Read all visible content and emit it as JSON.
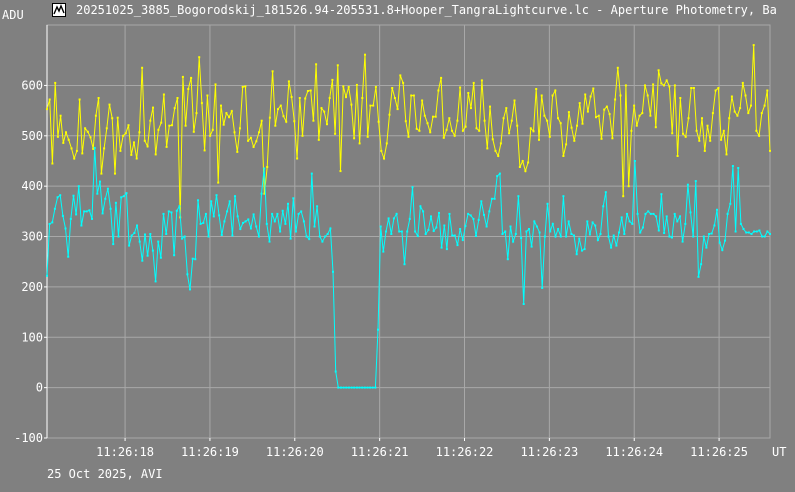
{
  "title": "20251025_3885_Bogorodskij_181526.94-205531.8+Hooper_TangraLightcurve.lc - Aperture Photometry, Ba",
  "footer": "25 Oct 2025, AVI",
  "colors": {
    "background": "#808080",
    "grid": "#a8a8a8",
    "target": "#ffff00",
    "comparison": "#00ffff"
  },
  "chart_data": {
    "type": "line",
    "ylabel": "ADU",
    "xunit": "UT",
    "ylim": [
      -100,
      720
    ],
    "yticks": [
      -100,
      0,
      100,
      200,
      300,
      400,
      500,
      600
    ],
    "xlim": [
      "11:26:17.08",
      "11:26:25.60"
    ],
    "xticks": [
      "11:26:18",
      "11:26:19",
      "11:26:20",
      "11:26:21",
      "11:26:22",
      "11:26:23",
      "11:26:24",
      "11:26:25"
    ],
    "grid": true,
    "frame_interval_s": 0.04,
    "series": [
      {
        "color": "#ffff00",
        "values": [
          553,
          572,
          445,
          605,
          498,
          540,
          486,
          507,
          492,
          475,
          455,
          470,
          572,
          465,
          515,
          508,
          497,
          474,
          540,
          575,
          425,
          475,
          515,
          562,
          535,
          425,
          536,
          470,
          500,
          505,
          521,
          462,
          487,
          455,
          507,
          635,
          490,
          479,
          530,
          556,
          463,
          512,
          526,
          582,
          478,
          520,
          521,
          555,
          575,
          338,
          617,
          520,
          593,
          615,
          508,
          545,
          656,
          565,
          471,
          580,
          500,
          512,
          602,
          407,
          560,
          522,
          545,
          537,
          549,
          507,
          468,
          515,
          597,
          598,
          490,
          496,
          478,
          489,
          507,
          530,
          385,
          438,
          536,
          628,
          520,
          553,
          560,
          539,
          528,
          608,
          577,
          529,
          455,
          575,
          500,
          574,
          589,
          590,
          530,
          642,
          492,
          555,
          548,
          523,
          575,
          611,
          504,
          640,
          430,
          598,
          577,
          597,
          562,
          495,
          601,
          485,
          575,
          661,
          498,
          560,
          560,
          597,
          528,
          470,
          455,
          485,
          542,
          595,
          575,
          553,
          620,
          605,
          529,
          498,
          580,
          580,
          514,
          510,
          570,
          540,
          525,
          507,
          538,
          538,
          590,
          615,
          496,
          512,
          535,
          510,
          500,
          530,
          596,
          510,
          518,
          585,
          555,
          605,
          515,
          510,
          610,
          530,
          475,
          558,
          493,
          470,
          460,
          485,
          535,
          555,
          505,
          530,
          570,
          520,
          438,
          450,
          430,
          447,
          515,
          509,
          593,
          492,
          580,
          540,
          530,
          498,
          580,
          590,
          535,
          525,
          460,
          483,
          547,
          516,
          490,
          520,
          565,
          524,
          582,
          548,
          578,
          594,
          537,
          540,
          494,
          552,
          558,
          543,
          495,
          572,
          635,
          580,
          380,
          600,
          400,
          510,
          560,
          520,
          540,
          545,
          600,
          580,
          540,
          602,
          517,
          630,
          604,
          600,
          610,
          598,
          505,
          600,
          460,
          575,
          504,
          498,
          535,
          595,
          595,
          510,
          490,
          535,
          470,
          520,
          490,
          545,
          590,
          595,
          492,
          510,
          463,
          535,
          578,
          548,
          540,
          555,
          605,
          580,
          545,
          560,
          680,
          510,
          500,
          545,
          560,
          590,
          470
        ]
      },
      {
        "color": "#00ffff",
        "values": [
          222,
          325,
          328,
          355,
          378,
          382,
          341,
          316,
          260,
          335,
          381,
          344,
          400,
          322,
          350,
          350,
          352,
          335,
          476,
          385,
          409,
          346,
          375,
          395,
          355,
          285,
          367,
          300,
          378,
          380,
          386,
          282,
          302,
          307,
          322,
          290,
          252,
          304,
          262,
          305,
          272,
          211,
          290,
          258,
          345,
          305,
          350,
          348,
          263,
          351,
          360,
          296,
          300,
          225,
          195,
          256,
          255,
          372,
          325,
          327,
          345,
          300,
          370,
          340,
          382,
          342,
          303,
          330,
          350,
          370,
          302,
          380,
          340,
          315,
          327,
          330,
          334,
          316,
          344,
          320,
          300,
          385,
          435,
          325,
          290,
          345,
          330,
          345,
          310,
          351,
          325,
          365,
          296,
          376,
          310,
          345,
          350,
          330,
          300,
          295,
          425,
          320,
          360,
          300,
          290,
          300,
          305,
          316,
          230,
          32,
          0,
          0,
          0,
          0,
          0,
          0,
          0,
          0,
          0,
          0,
          0,
          0,
          0,
          0,
          0,
          115,
          320,
          270,
          310,
          336,
          305,
          336,
          345,
          310,
          310,
          245,
          310,
          335,
          398,
          310,
          301,
          360,
          350,
          305,
          313,
          340,
          311,
          318,
          347,
          278,
          322,
          275,
          345,
          302,
          302,
          283,
          315,
          293,
          321,
          345,
          342,
          335,
          301,
          333,
          370,
          343,
          320,
          350,
          375,
          375,
          420,
          425,
          305,
          310,
          255,
          320,
          290,
          305,
          380,
          297,
          166,
          310,
          315,
          280,
          330,
          320,
          308,
          198,
          300,
          365,
          310,
          325,
          300,
          315,
          300,
          380,
          300,
          330,
          305,
          302,
          265,
          296,
          272,
          275,
          330,
          304,
          328,
          322,
          293,
          305,
          360,
          388,
          300,
          278,
          302,
          282,
          308,
          338,
          305,
          345,
          330,
          325,
          450,
          345,
          308,
          318,
          345,
          350,
          345,
          345,
          340,
          312,
          384,
          307,
          340,
          300,
          298,
          345,
          330,
          340,
          290,
          325,
          403,
          348,
          300,
          410,
          220,
          245,
          300,
          278,
          305,
          306,
          322,
          353,
          288,
          273,
          292,
          345,
          365,
          440,
          310,
          436,
          325,
          315,
          308,
          308,
          305,
          310,
          310,
          312,
          300,
          300,
          310,
          305
        ]
      }
    ]
  }
}
